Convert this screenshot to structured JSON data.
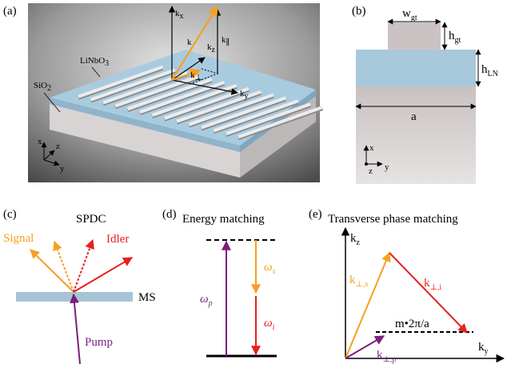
{
  "panel_a": {
    "label": "(a)",
    "material_top": {
      "base": "LiNbO",
      "sub": "3"
    },
    "material_bottom": {
      "base": "SiO",
      "sub": "2"
    },
    "vectors": {
      "kx": {
        "base": "k",
        "sub": "x"
      },
      "k": "k",
      "kz": {
        "base": "k",
        "sub": "z"
      },
      "kpar": {
        "base": "k",
        "sub": "∥"
      },
      "kperp": {
        "base": "k",
        "sub": "⊥"
      },
      "ky": {
        "base": "k",
        "sub": "y"
      }
    },
    "axes": {
      "x": "x",
      "z": "z",
      "y": "y"
    }
  },
  "panel_b": {
    "label": "(b)",
    "width": {
      "base": "w",
      "sub": "gt"
    },
    "height_grating": {
      "base": "h",
      "sub": "gt"
    },
    "height_film": {
      "base": "h",
      "sub": "LN"
    },
    "period": "a",
    "axes": {
      "x": "x",
      "z": "z",
      "y": "y"
    }
  },
  "panel_c": {
    "label": "(c)",
    "title": "SPDC",
    "signal": "Signal",
    "idler": "Idler",
    "metasurface": "MS",
    "pump": "Pump"
  },
  "panel_d": {
    "label": "(d)",
    "title": "Energy matching",
    "omega_p": {
      "base": "ω",
      "sub": "p"
    },
    "omega_s": {
      "base": "ω",
      "sub": "s"
    },
    "omega_i": {
      "base": "ω",
      "sub": "i"
    }
  },
  "panel_e": {
    "label": "(e)",
    "title": "Transverse phase matching",
    "kz": {
      "base": "k",
      "sub": "z"
    },
    "ky": {
      "base": "k",
      "sub": "y"
    },
    "k_s": {
      "base": "k",
      "sub": "⊥,s"
    },
    "k_i": {
      "base": "k",
      "sub": "⊥,i"
    },
    "k_p": {
      "base": "k",
      "sub": "⊥,p"
    },
    "grating_vector": "m•2π/a"
  }
}
